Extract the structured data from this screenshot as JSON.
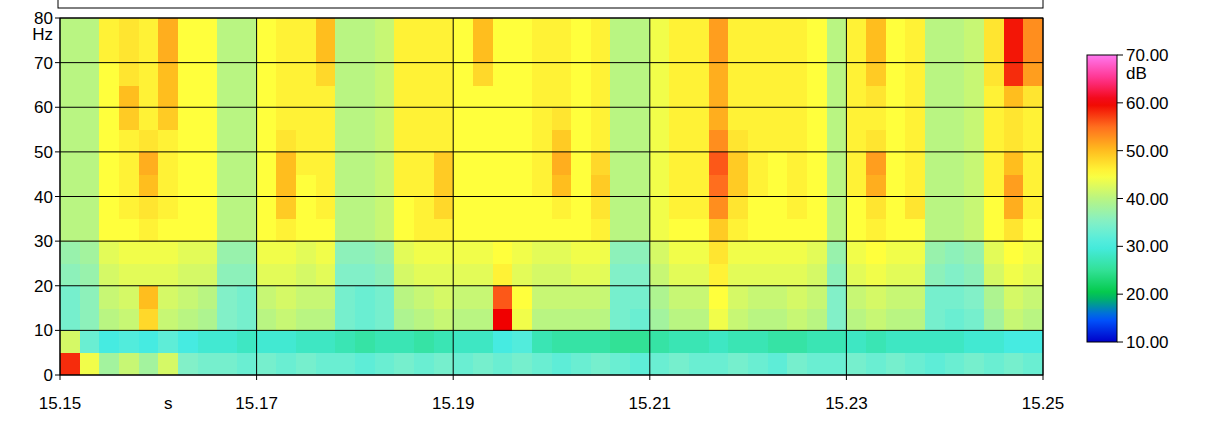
{
  "chart_data": {
    "type": "heatmap",
    "x_label": "s",
    "y_label": "Hz",
    "xlim": [
      15.15,
      15.25
    ],
    "ylim": [
      0,
      80
    ],
    "xticks": [
      15.15,
      15.17,
      15.19,
      15.21,
      15.23,
      15.25
    ],
    "yticks": [
      0,
      10,
      20,
      30,
      40,
      50,
      60,
      70,
      80
    ],
    "grid": true,
    "x_edges": [
      15.15,
      15.152,
      15.154,
      15.156,
      15.158,
      15.16,
      15.162,
      15.164,
      15.166,
      15.168,
      15.17,
      15.172,
      15.174,
      15.176,
      15.178,
      15.18,
      15.182,
      15.184,
      15.186,
      15.188,
      15.19,
      15.192,
      15.194,
      15.196,
      15.198,
      15.2,
      15.202,
      15.204,
      15.206,
      15.208,
      15.21,
      15.212,
      15.214,
      15.216,
      15.218,
      15.22,
      15.222,
      15.224,
      15.226,
      15.228,
      15.23,
      15.232,
      15.234,
      15.236,
      15.238,
      15.24,
      15.242,
      15.244,
      15.246,
      15.248,
      15.25
    ],
    "y_edges": [
      0,
      5,
      10,
      15,
      20,
      25,
      30,
      35,
      40,
      45,
      50,
      55,
      60,
      65,
      70,
      75,
      80
    ],
    "cells": [
      [
        58,
        44,
        38,
        41,
        38,
        42,
        35,
        34,
        34,
        33,
        34,
        33,
        34,
        33,
        33,
        32,
        33,
        34,
        33,
        34,
        33,
        34,
        33,
        34,
        33,
        32,
        33,
        34,
        33,
        32,
        33,
        34,
        33,
        33,
        34,
        33,
        32,
        34,
        33,
        33,
        34,
        33,
        34,
        33,
        32,
        33,
        34,
        33,
        34,
        33
      ],
      [
        42,
        33,
        30,
        31,
        30,
        32,
        30,
        29,
        29,
        28,
        29,
        29,
        28,
        28,
        27,
        26,
        27,
        27,
        26,
        27,
        28,
        28,
        30,
        31,
        27,
        26,
        26,
        26,
        25,
        25,
        26,
        27,
        27,
        28,
        27,
        27,
        26,
        26,
        27,
        27,
        28,
        27,
        28,
        28,
        28,
        28,
        29,
        29,
        30,
        30
      ],
      [
        34,
        36,
        40,
        41,
        48,
        41,
        40,
        39,
        35,
        34,
        40,
        41,
        40,
        40,
        34,
        33,
        34,
        39,
        40,
        41,
        40,
        40,
        60,
        44,
        40,
        40,
        40,
        40,
        34,
        33,
        38,
        40,
        40,
        44,
        41,
        40,
        40,
        41,
        40,
        35,
        40,
        41,
        40,
        40,
        34,
        33,
        34,
        38,
        41,
        40
      ],
      [
        34,
        36,
        41,
        42,
        50,
        42,
        41,
        40,
        35,
        34,
        41,
        42,
        41,
        41,
        34,
        33,
        34,
        40,
        41,
        42,
        41,
        41,
        56,
        45,
        41,
        41,
        41,
        41,
        34,
        34,
        39,
        41,
        41,
        45,
        42,
        41,
        41,
        42,
        41,
        35,
        41,
        42,
        41,
        41,
        34,
        34,
        35,
        39,
        42,
        41
      ],
      [
        36,
        37,
        42,
        43,
        43,
        43,
        42,
        42,
        36,
        36,
        43,
        43,
        42,
        43,
        35,
        35,
        36,
        42,
        43,
        43,
        43,
        43,
        46,
        43,
        42,
        42,
        43,
        43,
        35,
        35,
        41,
        43,
        43,
        46,
        43,
        43,
        43,
        43,
        42,
        36,
        43,
        44,
        43,
        43,
        36,
        35,
        36,
        42,
        44,
        43
      ],
      [
        37,
        38,
        43,
        44,
        44,
        44,
        43,
        43,
        37,
        37,
        44,
        44,
        43,
        44,
        36,
        36,
        37,
        43,
        44,
        44,
        44,
        44,
        45,
        44,
        43,
        43,
        44,
        44,
        36,
        36,
        42,
        44,
        44,
        47,
        44,
        44,
        44,
        44,
        43,
        37,
        44,
        45,
        44,
        44,
        37,
        36,
        37,
        43,
        45,
        44
      ],
      [
        40,
        40,
        45,
        45,
        46,
        45,
        45,
        45,
        40,
        40,
        45,
        46,
        45,
        45,
        40,
        40,
        41,
        45,
        46,
        46,
        45,
        45,
        45,
        45,
        45,
        45,
        45,
        46,
        40,
        40,
        44,
        45,
        45,
        49,
        46,
        45,
        45,
        45,
        45,
        40,
        45,
        46,
        45,
        45,
        40,
        40,
        41,
        45,
        47,
        45
      ],
      [
        40,
        40,
        45,
        46,
        47,
        46,
        45,
        45,
        40,
        40,
        45,
        49,
        45,
        46,
        40,
        40,
        41,
        45,
        46,
        48,
        45,
        45,
        45,
        45,
        45,
        46,
        45,
        47,
        40,
        40,
        44,
        46,
        46,
        53,
        47,
        45,
        45,
        46,
        45,
        40,
        45,
        47,
        45,
        47,
        40,
        40,
        41,
        45,
        51,
        46
      ],
      [
        40,
        40,
        45,
        46,
        50,
        46,
        45,
        45,
        40,
        40,
        45,
        50,
        45,
        46,
        40,
        40,
        41,
        46,
        46,
        49,
        45,
        45,
        45,
        45,
        46,
        50,
        45,
        49,
        40,
        40,
        44,
        46,
        46,
        55,
        49,
        46,
        45,
        46,
        45,
        40,
        46,
        51,
        45,
        46,
        40,
        40,
        41,
        46,
        52,
        46
      ],
      [
        40,
        40,
        45,
        46,
        51,
        46,
        45,
        45,
        40,
        40,
        45,
        50,
        46,
        46,
        40,
        40,
        41,
        46,
        46,
        49,
        45,
        45,
        45,
        45,
        46,
        51,
        45,
        48,
        40,
        40,
        44,
        46,
        46,
        56,
        49,
        46,
        45,
        46,
        45,
        40,
        46,
        52,
        45,
        46,
        40,
        40,
        41,
        46,
        50,
        46
      ],
      [
        40,
        40,
        45,
        46,
        47,
        46,
        45,
        45,
        40,
        40,
        45,
        47,
        46,
        46,
        40,
        40,
        41,
        46,
        46,
        46,
        45,
        45,
        45,
        45,
        46,
        49,
        45,
        46,
        40,
        40,
        44,
        46,
        46,
        53,
        47,
        46,
        46,
        46,
        45,
        40,
        46,
        47,
        45,
        46,
        40,
        40,
        41,
        46,
        47,
        46
      ],
      [
        40,
        40,
        45,
        49,
        46,
        49,
        45,
        45,
        40,
        40,
        45,
        46,
        46,
        46,
        40,
        40,
        41,
        46,
        46,
        46,
        45,
        45,
        45,
        45,
        46,
        47,
        45,
        46,
        40,
        40,
        44,
        46,
        46,
        51,
        46,
        46,
        46,
        46,
        45,
        40,
        46,
        46,
        45,
        46,
        40,
        40,
        41,
        46,
        47,
        46
      ],
      [
        40,
        40,
        45,
        50,
        46,
        50,
        45,
        45,
        40,
        40,
        45,
        46,
        46,
        46,
        40,
        40,
        41,
        46,
        46,
        46,
        45,
        45,
        45,
        45,
        46,
        46,
        45,
        46,
        40,
        40,
        44,
        46,
        46,
        51,
        46,
        46,
        46,
        46,
        45,
        40,
        46,
        47,
        45,
        46,
        40,
        40,
        41,
        46,
        50,
        47
      ],
      [
        40,
        40,
        45,
        47,
        46,
        50,
        45,
        45,
        40,
        40,
        45,
        46,
        46,
        48,
        40,
        40,
        41,
        46,
        46,
        46,
        45,
        48,
        45,
        45,
        46,
        46,
        45,
        46,
        40,
        40,
        44,
        46,
        46,
        51,
        46,
        46,
        46,
        46,
        45,
        40,
        46,
        49,
        45,
        46,
        40,
        40,
        41,
        47,
        58,
        52
      ],
      [
        40,
        40,
        46,
        47,
        46,
        51,
        45,
        45,
        40,
        40,
        45,
        46,
        46,
        50,
        40,
        40,
        41,
        46,
        46,
        46,
        45,
        50,
        45,
        45,
        46,
        46,
        45,
        46,
        40,
        40,
        44,
        46,
        46,
        52,
        46,
        46,
        46,
        46,
        45,
        40,
        46,
        50,
        45,
        46,
        40,
        40,
        41,
        47,
        59,
        53
      ],
      [
        40,
        40,
        46,
        47,
        46,
        51,
        45,
        45,
        40,
        40,
        45,
        46,
        46,
        50,
        40,
        40,
        41,
        46,
        46,
        46,
        45,
        50,
        45,
        45,
        46,
        46,
        45,
        46,
        40,
        40,
        44,
        46,
        46,
        52,
        46,
        46,
        46,
        46,
        45,
        40,
        46,
        50,
        45,
        46,
        40,
        40,
        41,
        47,
        59,
        53
      ]
    ],
    "colorbar": {
      "label": "dB",
      "range": [
        10,
        70
      ],
      "ticks": [
        {
          "value": 70,
          "label": "70.00"
        },
        {
          "value": 60,
          "label": "60.00"
        },
        {
          "value": 50,
          "label": "50.00"
        },
        {
          "value": 40,
          "label": "40.00"
        },
        {
          "value": 30,
          "label": "30.00"
        },
        {
          "value": 20,
          "label": "20.00"
        },
        {
          "value": 10,
          "label": "10.00"
        }
      ]
    }
  }
}
